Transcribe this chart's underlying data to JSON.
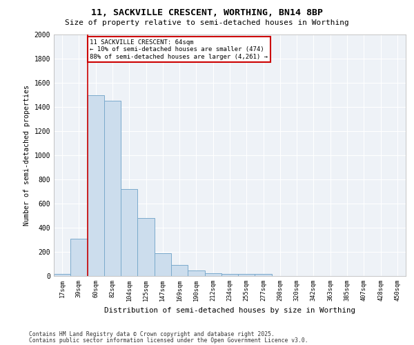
{
  "title1": "11, SACKVILLE CRESCENT, WORTHING, BN14 8BP",
  "title2": "Size of property relative to semi-detached houses in Worthing",
  "xlabel": "Distribution of semi-detached houses by size in Worthing",
  "ylabel": "Number of semi-detached properties",
  "bar_color": "#ccdded",
  "bar_edge_color": "#7aaacc",
  "highlight_line_color": "#cc0000",
  "annotation_box_color": "#cc0000",
  "background_color": "#ffffff",
  "plot_bg_color": "#eef2f7",
  "grid_color": "#ffffff",
  "categories": [
    "17sqm",
    "39sqm",
    "60sqm",
    "82sqm",
    "104sqm",
    "125sqm",
    "147sqm",
    "169sqm",
    "190sqm",
    "212sqm",
    "234sqm",
    "255sqm",
    "277sqm",
    "298sqm",
    "320sqm",
    "342sqm",
    "363sqm",
    "385sqm",
    "407sqm",
    "428sqm",
    "450sqm"
  ],
  "values": [
    20,
    310,
    1500,
    1450,
    720,
    480,
    190,
    90,
    45,
    25,
    20,
    20,
    20,
    0,
    0,
    0,
    0,
    0,
    0,
    0,
    0
  ],
  "highlight_index": 2,
  "annotation_title": "11 SACKVILLE CRESCENT: 64sqm",
  "annotation_line1": "← 10% of semi-detached houses are smaller (474)",
  "annotation_line2": "88% of semi-detached houses are larger (4,261) →",
  "ylim": [
    0,
    2000
  ],
  "yticks": [
    0,
    200,
    400,
    600,
    800,
    1000,
    1200,
    1400,
    1600,
    1800,
    2000
  ],
  "footer1": "Contains HM Land Registry data © Crown copyright and database right 2025.",
  "footer2": "Contains public sector information licensed under the Open Government Licence v3.0."
}
